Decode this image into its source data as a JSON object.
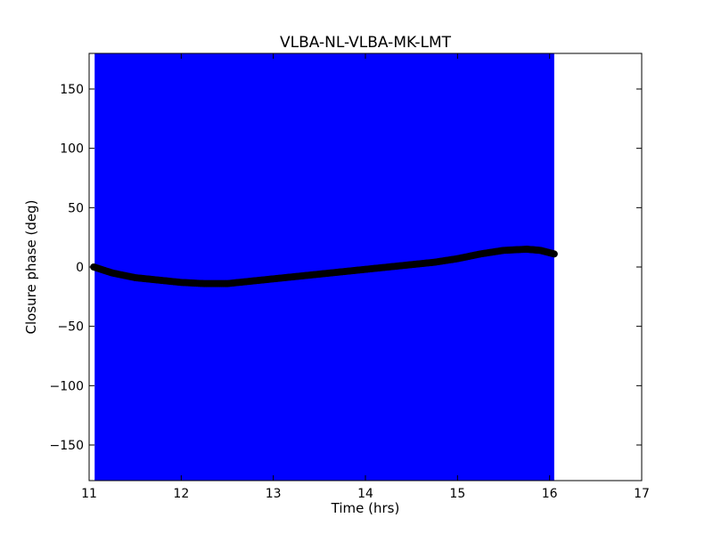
{
  "chart_data": {
    "type": "scatter",
    "title": "VLBA-NL-VLBA-MK-LMT",
    "xlabel": "Time (hrs)",
    "ylabel": "Closure phase (deg)",
    "xlim": [
      11,
      17
    ],
    "ylim": [
      -180,
      180
    ],
    "xticks": [
      11,
      12,
      13,
      14,
      15,
      16,
      17
    ],
    "yticks": [
      -150,
      -100,
      -50,
      0,
      50,
      100,
      150
    ],
    "xtick_labels": [
      "11",
      "12",
      "13",
      "14",
      "15",
      "16",
      "17"
    ],
    "ytick_labels": [
      "−150",
      "−100",
      "−50",
      "0",
      "50",
      "100",
      "150"
    ],
    "shaded_band": {
      "x_start": 11.06,
      "x_end": 16.05,
      "color": "#0000ff"
    },
    "marker_color": "#000000",
    "series": [
      {
        "x": [
          11.05,
          11.25,
          11.5,
          11.75,
          12.0,
          12.25,
          12.5,
          12.75,
          13.0,
          13.25,
          13.5,
          13.75,
          14.0,
          14.25,
          14.5,
          14.75,
          15.0,
          15.25,
          15.5,
          15.75,
          15.9,
          16.05
        ],
        "y": [
          0,
          -5,
          -9,
          -11,
          -13,
          -14,
          -14,
          -12,
          -10,
          -8,
          -6,
          -4,
          -2,
          0,
          2,
          4,
          7,
          11,
          14,
          15,
          14,
          11
        ]
      }
    ]
  }
}
